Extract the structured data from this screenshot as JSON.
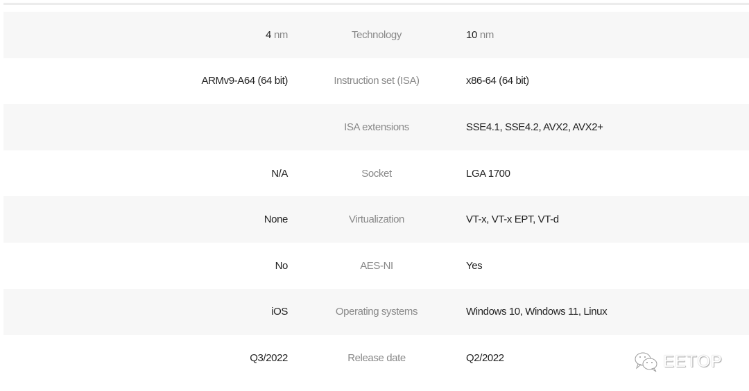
{
  "rows": [
    {
      "left": "4",
      "left_unit": "nm",
      "label": "Technology",
      "right": "10",
      "right_unit": "nm"
    },
    {
      "left": "ARMv9-A64 (64 bit)",
      "label": "Instruction set (ISA)",
      "right": "x86-64 (64 bit)"
    },
    {
      "left": "",
      "label": "ISA extensions",
      "right": "SSE4.1, SSE4.2, AVX2, AVX2+"
    },
    {
      "left": "N/A",
      "label": "Socket",
      "right": "LGA 1700"
    },
    {
      "left": "None",
      "label": "Virtualization",
      "right": "VT-x, VT-x EPT, VT-d"
    },
    {
      "left": "No",
      "label": "AES-NI",
      "right": "Yes"
    },
    {
      "left": "iOS",
      "label": "Operating systems",
      "right": "Windows 10, Windows 11, Linux"
    },
    {
      "left": "Q3/2022",
      "label": "Release date",
      "right": "Q2/2022"
    }
  ],
  "watermark": {
    "text": "EETOP",
    "icon": "wechat-icon"
  }
}
